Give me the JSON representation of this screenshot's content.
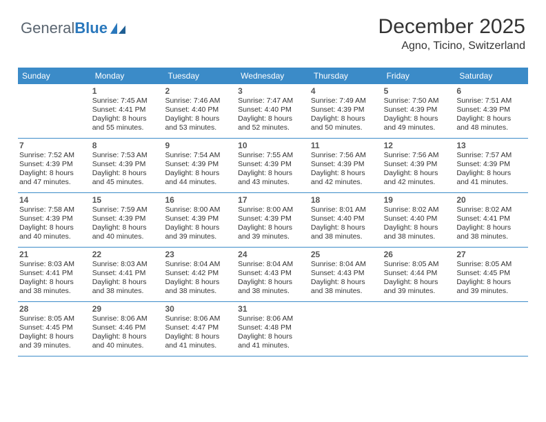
{
  "logo": {
    "part1": "General",
    "part2": "Blue"
  },
  "title": "December 2025",
  "location": "Agno, Ticino, Switzerland",
  "theme": {
    "header_bg": "#3b8bc8",
    "header_text": "#ffffff",
    "divider": "#3b8bc8",
    "page_bg": "#ffffff",
    "text": "#333333",
    "logo_gray": "#5a6570",
    "logo_blue": "#2a78bc"
  },
  "dow": [
    "Sunday",
    "Monday",
    "Tuesday",
    "Wednesday",
    "Thursday",
    "Friday",
    "Saturday"
  ],
  "weeks": [
    [
      null,
      {
        "n": "1",
        "sr": "Sunrise: 7:45 AM",
        "ss": "Sunset: 4:41 PM",
        "d1": "Daylight: 8 hours",
        "d2": "and 55 minutes."
      },
      {
        "n": "2",
        "sr": "Sunrise: 7:46 AM",
        "ss": "Sunset: 4:40 PM",
        "d1": "Daylight: 8 hours",
        "d2": "and 53 minutes."
      },
      {
        "n": "3",
        "sr": "Sunrise: 7:47 AM",
        "ss": "Sunset: 4:40 PM",
        "d1": "Daylight: 8 hours",
        "d2": "and 52 minutes."
      },
      {
        "n": "4",
        "sr": "Sunrise: 7:49 AM",
        "ss": "Sunset: 4:39 PM",
        "d1": "Daylight: 8 hours",
        "d2": "and 50 minutes."
      },
      {
        "n": "5",
        "sr": "Sunrise: 7:50 AM",
        "ss": "Sunset: 4:39 PM",
        "d1": "Daylight: 8 hours",
        "d2": "and 49 minutes."
      },
      {
        "n": "6",
        "sr": "Sunrise: 7:51 AM",
        "ss": "Sunset: 4:39 PM",
        "d1": "Daylight: 8 hours",
        "d2": "and 48 minutes."
      }
    ],
    [
      {
        "n": "7",
        "sr": "Sunrise: 7:52 AM",
        "ss": "Sunset: 4:39 PM",
        "d1": "Daylight: 8 hours",
        "d2": "and 47 minutes."
      },
      {
        "n": "8",
        "sr": "Sunrise: 7:53 AM",
        "ss": "Sunset: 4:39 PM",
        "d1": "Daylight: 8 hours",
        "d2": "and 45 minutes."
      },
      {
        "n": "9",
        "sr": "Sunrise: 7:54 AM",
        "ss": "Sunset: 4:39 PM",
        "d1": "Daylight: 8 hours",
        "d2": "and 44 minutes."
      },
      {
        "n": "10",
        "sr": "Sunrise: 7:55 AM",
        "ss": "Sunset: 4:39 PM",
        "d1": "Daylight: 8 hours",
        "d2": "and 43 minutes."
      },
      {
        "n": "11",
        "sr": "Sunrise: 7:56 AM",
        "ss": "Sunset: 4:39 PM",
        "d1": "Daylight: 8 hours",
        "d2": "and 42 minutes."
      },
      {
        "n": "12",
        "sr": "Sunrise: 7:56 AM",
        "ss": "Sunset: 4:39 PM",
        "d1": "Daylight: 8 hours",
        "d2": "and 42 minutes."
      },
      {
        "n": "13",
        "sr": "Sunrise: 7:57 AM",
        "ss": "Sunset: 4:39 PM",
        "d1": "Daylight: 8 hours",
        "d2": "and 41 minutes."
      }
    ],
    [
      {
        "n": "14",
        "sr": "Sunrise: 7:58 AM",
        "ss": "Sunset: 4:39 PM",
        "d1": "Daylight: 8 hours",
        "d2": "and 40 minutes."
      },
      {
        "n": "15",
        "sr": "Sunrise: 7:59 AM",
        "ss": "Sunset: 4:39 PM",
        "d1": "Daylight: 8 hours",
        "d2": "and 40 minutes."
      },
      {
        "n": "16",
        "sr": "Sunrise: 8:00 AM",
        "ss": "Sunset: 4:39 PM",
        "d1": "Daylight: 8 hours",
        "d2": "and 39 minutes."
      },
      {
        "n": "17",
        "sr": "Sunrise: 8:00 AM",
        "ss": "Sunset: 4:39 PM",
        "d1": "Daylight: 8 hours",
        "d2": "and 39 minutes."
      },
      {
        "n": "18",
        "sr": "Sunrise: 8:01 AM",
        "ss": "Sunset: 4:40 PM",
        "d1": "Daylight: 8 hours",
        "d2": "and 38 minutes."
      },
      {
        "n": "19",
        "sr": "Sunrise: 8:02 AM",
        "ss": "Sunset: 4:40 PM",
        "d1": "Daylight: 8 hours",
        "d2": "and 38 minutes."
      },
      {
        "n": "20",
        "sr": "Sunrise: 8:02 AM",
        "ss": "Sunset: 4:41 PM",
        "d1": "Daylight: 8 hours",
        "d2": "and 38 minutes."
      }
    ],
    [
      {
        "n": "21",
        "sr": "Sunrise: 8:03 AM",
        "ss": "Sunset: 4:41 PM",
        "d1": "Daylight: 8 hours",
        "d2": "and 38 minutes."
      },
      {
        "n": "22",
        "sr": "Sunrise: 8:03 AM",
        "ss": "Sunset: 4:41 PM",
        "d1": "Daylight: 8 hours",
        "d2": "and 38 minutes."
      },
      {
        "n": "23",
        "sr": "Sunrise: 8:04 AM",
        "ss": "Sunset: 4:42 PM",
        "d1": "Daylight: 8 hours",
        "d2": "and 38 minutes."
      },
      {
        "n": "24",
        "sr": "Sunrise: 8:04 AM",
        "ss": "Sunset: 4:43 PM",
        "d1": "Daylight: 8 hours",
        "d2": "and 38 minutes."
      },
      {
        "n": "25",
        "sr": "Sunrise: 8:04 AM",
        "ss": "Sunset: 4:43 PM",
        "d1": "Daylight: 8 hours",
        "d2": "and 38 minutes."
      },
      {
        "n": "26",
        "sr": "Sunrise: 8:05 AM",
        "ss": "Sunset: 4:44 PM",
        "d1": "Daylight: 8 hours",
        "d2": "and 39 minutes."
      },
      {
        "n": "27",
        "sr": "Sunrise: 8:05 AM",
        "ss": "Sunset: 4:45 PM",
        "d1": "Daylight: 8 hours",
        "d2": "and 39 minutes."
      }
    ],
    [
      {
        "n": "28",
        "sr": "Sunrise: 8:05 AM",
        "ss": "Sunset: 4:45 PM",
        "d1": "Daylight: 8 hours",
        "d2": "and 39 minutes."
      },
      {
        "n": "29",
        "sr": "Sunrise: 8:06 AM",
        "ss": "Sunset: 4:46 PM",
        "d1": "Daylight: 8 hours",
        "d2": "and 40 minutes."
      },
      {
        "n": "30",
        "sr": "Sunrise: 8:06 AM",
        "ss": "Sunset: 4:47 PM",
        "d1": "Daylight: 8 hours",
        "d2": "and 41 minutes."
      },
      {
        "n": "31",
        "sr": "Sunrise: 8:06 AM",
        "ss": "Sunset: 4:48 PM",
        "d1": "Daylight: 8 hours",
        "d2": "and 41 minutes."
      },
      null,
      null,
      null
    ]
  ]
}
